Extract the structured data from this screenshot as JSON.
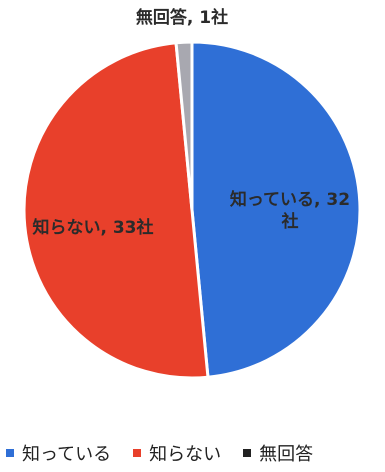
{
  "chart_data": {
    "type": "pie",
    "title": "",
    "slices": [
      {
        "label": "知っている",
        "value": 32,
        "color": "#2f6fd6",
        "data_label": "知っている, 32社"
      },
      {
        "label": "知らない",
        "value": 33,
        "color": "#e8402b",
        "data_label": "知らない, 33社"
      },
      {
        "label": "無回答",
        "value": 1,
        "color": "#a8a8b0",
        "data_label": "無回答, 1社"
      }
    ],
    "legend_position": "bottom"
  }
}
